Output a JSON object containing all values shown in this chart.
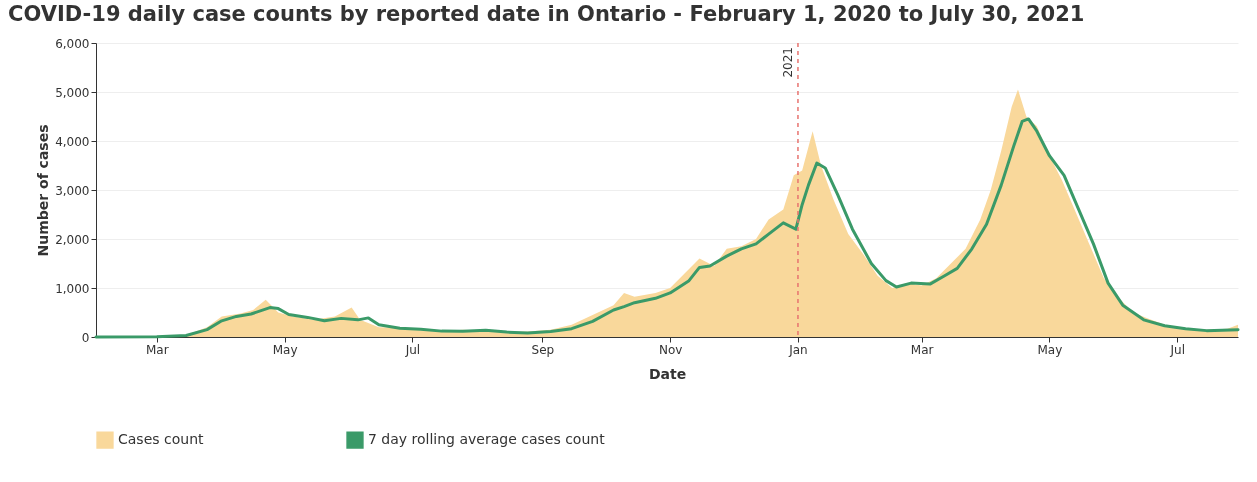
{
  "chart_data": {
    "type": "area",
    "title": "COVID-19 daily case counts by reported date in Ontario - February 1, 2020 to July 30, 2021",
    "xlabel": "Date",
    "ylabel": "Number of cases",
    "xlim": [
      "2020-02-01",
      "2021-07-30"
    ],
    "xticks": [
      {
        "value": "2020-03-01",
        "label": "Mar"
      },
      {
        "value": "2020-05-01",
        "label": "May"
      },
      {
        "value": "2020-07-01",
        "label": "Jul"
      },
      {
        "value": "2020-09-01",
        "label": "Sep"
      },
      {
        "value": "2020-11-01",
        "label": "Nov"
      },
      {
        "value": "2021-01-01",
        "label": "Jan"
      },
      {
        "value": "2021-03-01",
        "label": "Mar"
      },
      {
        "value": "2021-05-01",
        "label": "May"
      },
      {
        "value": "2021-07-01",
        "label": "Jul"
      }
    ],
    "ylim": [
      0,
      6000
    ],
    "yticks": [
      0,
      {
        "value": 1000,
        "label": "1,000"
      },
      {
        "value": 2000,
        "label": "2,000"
      },
      {
        "value": 3000,
        "label": "3,000"
      },
      {
        "value": 4000,
        "label": "4,000"
      },
      {
        "value": 5000,
        "label": "5,000"
      },
      {
        "value": 6000,
        "label": "6,000"
      }
    ],
    "grid": "y",
    "legend": "bottom",
    "ref_lines": [
      {
        "axis": "x",
        "value": "2021-01-01",
        "label": "2021",
        "color": "#e8736f",
        "line_style": "dashed"
      }
    ],
    "series": [
      {
        "name": "Cases count",
        "color": "#f9d89b",
        "x": [
          "2020-02-01",
          "2020-03-01",
          "2020-03-15",
          "2020-03-25",
          "2020-04-01",
          "2020-04-10",
          "2020-04-16",
          "2020-04-22",
          "2020-04-28",
          "2020-05-05",
          "2020-05-15",
          "2020-05-25",
          "2020-06-02",
          "2020-06-06",
          "2020-06-15",
          "2020-06-25",
          "2020-07-05",
          "2020-07-15",
          "2020-07-25",
          "2020-08-05",
          "2020-08-15",
          "2020-08-25",
          "2020-09-05",
          "2020-09-15",
          "2020-09-25",
          "2020-10-05",
          "2020-10-10",
          "2020-10-15",
          "2020-10-25",
          "2020-11-01",
          "2020-11-08",
          "2020-11-15",
          "2020-11-22",
          "2020-11-28",
          "2020-12-05",
          "2020-12-12",
          "2020-12-18",
          "2020-12-25",
          "2020-12-30",
          "2021-01-03",
          "2021-01-08",
          "2021-01-12",
          "2021-01-18",
          "2021-01-25",
          "2021-02-01",
          "2021-02-08",
          "2021-02-15",
          "2021-02-22",
          "2021-03-01",
          "2021-03-08",
          "2021-03-15",
          "2021-03-22",
          "2021-03-29",
          "2021-04-03",
          "2021-04-08",
          "2021-04-13",
          "2021-04-16",
          "2021-04-20",
          "2021-04-25",
          "2021-05-01",
          "2021-05-07",
          "2021-05-13",
          "2021-05-20",
          "2021-05-27",
          "2021-06-03",
          "2021-06-10",
          "2021-06-17",
          "2021-06-25",
          "2021-07-05",
          "2021-07-15",
          "2021-07-25",
          "2021-07-30"
        ],
        "values": [
          0,
          5,
          40,
          200,
          420,
          480,
          550,
          760,
          500,
          420,
          350,
          420,
          600,
          350,
          200,
          190,
          140,
          110,
          150,
          120,
          100,
          110,
          150,
          250,
          450,
          650,
          900,
          820,
          900,
          1000,
          1300,
          1600,
          1450,
          1800,
          1850,
          2000,
          2400,
          2600,
          3300,
          3400,
          4200,
          3500,
          2800,
          2100,
          1700,
          1250,
          1000,
          1100,
          1050,
          1200,
          1500,
          1800,
          2400,
          3000,
          3800,
          4700,
          5050,
          4500,
          4300,
          3700,
          3200,
          2600,
          1900,
          1200,
          800,
          500,
          380,
          250,
          180,
          150,
          170,
          250
        ]
      },
      {
        "name": "7 day rolling average cases count",
        "type": "line",
        "color": "#3a9a68",
        "x": [
          "2020-02-01",
          "2020-03-01",
          "2020-03-15",
          "2020-03-25",
          "2020-04-01",
          "2020-04-08",
          "2020-04-15",
          "2020-04-24",
          "2020-04-28",
          "2020-05-03",
          "2020-05-12",
          "2020-05-20",
          "2020-05-28",
          "2020-06-05",
          "2020-06-10",
          "2020-06-15",
          "2020-06-25",
          "2020-07-05",
          "2020-07-15",
          "2020-07-25",
          "2020-08-05",
          "2020-08-15",
          "2020-08-25",
          "2020-09-05",
          "2020-09-15",
          "2020-09-25",
          "2020-10-05",
          "2020-10-10",
          "2020-10-15",
          "2020-10-25",
          "2020-11-01",
          "2020-11-10",
          "2020-11-15",
          "2020-11-20",
          "2020-11-28",
          "2020-12-05",
          "2020-12-12",
          "2020-12-18",
          "2020-12-25",
          "2020-12-31",
          "2021-01-03",
          "2021-01-06",
          "2021-01-10",
          "2021-01-14",
          "2021-01-20",
          "2021-01-27",
          "2021-02-05",
          "2021-02-12",
          "2021-02-17",
          "2021-02-24",
          "2021-03-05",
          "2021-03-12",
          "2021-03-18",
          "2021-03-25",
          "2021-04-01",
          "2021-04-08",
          "2021-04-14",
          "2021-04-18",
          "2021-04-21",
          "2021-04-25",
          "2021-05-01",
          "2021-05-08",
          "2021-05-15",
          "2021-05-22",
          "2021-05-29",
          "2021-06-05",
          "2021-06-15",
          "2021-06-25",
          "2021-07-05",
          "2021-07-15",
          "2021-07-30"
        ],
        "values": [
          0,
          5,
          30,
          150,
          330,
          420,
          470,
          600,
          580,
          460,
          400,
          330,
          380,
          350,
          390,
          250,
          180,
          160,
          120,
          115,
          140,
          100,
          80,
          110,
          170,
          320,
          550,
          620,
          700,
          790,
          900,
          1150,
          1420,
          1450,
          1650,
          1800,
          1900,
          2100,
          2330,
          2200,
          2700,
          3100,
          3550,
          3450,
          2900,
          2200,
          1500,
          1150,
          1020,
          1100,
          1080,
          1250,
          1400,
          1800,
          2300,
          3100,
          3900,
          4400,
          4450,
          4200,
          3700,
          3300,
          2600,
          1900,
          1100,
          650,
          350,
          230,
          170,
          130,
          150
        ]
      }
    ]
  }
}
